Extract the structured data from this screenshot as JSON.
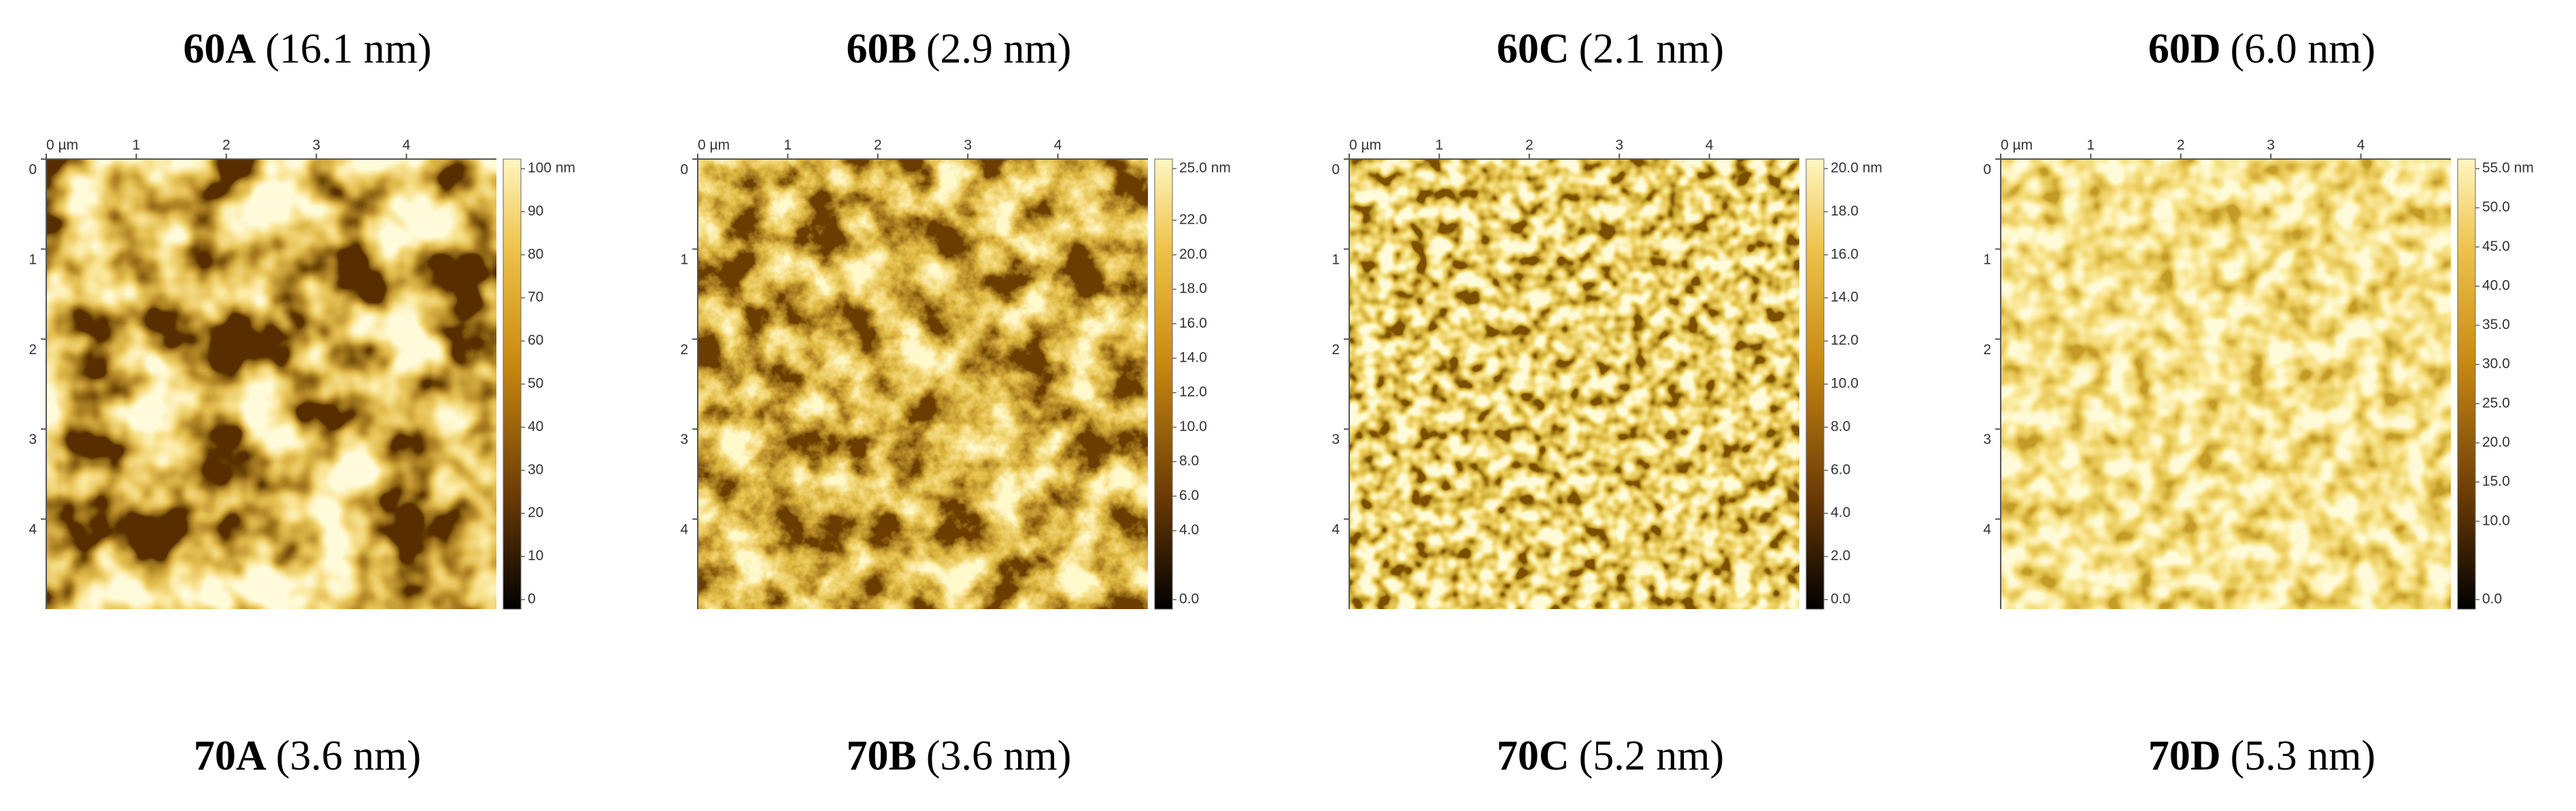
{
  "axes": {
    "xlim": [
      0,
      5
    ],
    "ylim": [
      0,
      5
    ],
    "xticks": [
      {
        "value": 0,
        "label": "0 µm"
      },
      1,
      2,
      3,
      4
    ],
    "yticks": [
      0,
      1,
      2,
      3,
      4
    ]
  },
  "panels": [
    {
      "label": "60A",
      "value": "(16.1 nm)",
      "colorbar": {
        "lim": [
          0,
          100
        ],
        "ticks": [
          {
            "value": 100,
            "label": "100 nm"
          },
          90,
          80,
          70,
          60,
          50,
          40,
          30,
          20,
          10,
          0
        ]
      }
    },
    {
      "label": "60B",
      "value": "(2.9 nm)",
      "colorbar": {
        "lim": [
          0,
          25
        ],
        "ticks": [
          {
            "value": 25,
            "label": "25.0 nm"
          },
          {
            "value": 22,
            "label": "22.0"
          },
          {
            "value": 20,
            "label": "20.0"
          },
          {
            "value": 18,
            "label": "18.0"
          },
          {
            "value": 16,
            "label": "16.0"
          },
          {
            "value": 14,
            "label": "14.0"
          },
          {
            "value": 12,
            "label": "12.0"
          },
          {
            "value": 10,
            "label": "10.0"
          },
          {
            "value": 8,
            "label": "8.0"
          },
          {
            "value": 6,
            "label": "6.0"
          },
          {
            "value": 4,
            "label": "4.0"
          },
          {
            "value": 0,
            "label": "0.0"
          }
        ]
      }
    },
    {
      "label": "60C",
      "value": "(2.1 nm)",
      "colorbar": {
        "lim": [
          0,
          20
        ],
        "ticks": [
          {
            "value": 20,
            "label": "20.0 nm"
          },
          {
            "value": 18,
            "label": "18.0"
          },
          {
            "value": 16,
            "label": "16.0"
          },
          {
            "value": 14,
            "label": "14.0"
          },
          {
            "value": 12,
            "label": "12.0"
          },
          {
            "value": 10,
            "label": "10.0"
          },
          {
            "value": 8,
            "label": "8.0"
          },
          {
            "value": 6,
            "label": "6.0"
          },
          {
            "value": 4,
            "label": "4.0"
          },
          {
            "value": 2,
            "label": "2.0"
          },
          {
            "value": 0,
            "label": "0.0"
          }
        ]
      }
    },
    {
      "label": "60D",
      "value": "(6.0 nm)",
      "colorbar": {
        "lim": [
          0,
          55
        ],
        "ticks": [
          {
            "value": 55,
            "label": "55.0 nm"
          },
          {
            "value": 50,
            "label": "50.0"
          },
          {
            "value": 45,
            "label": "45.0"
          },
          {
            "value": 40,
            "label": "40.0"
          },
          {
            "value": 35,
            "label": "35.0"
          },
          {
            "value": 30,
            "label": "30.0"
          },
          {
            "value": 25,
            "label": "25.0"
          },
          {
            "value": 20,
            "label": "20.0"
          },
          {
            "value": 15,
            "label": "15.0"
          },
          {
            "value": 10,
            "label": "10.0"
          },
          {
            "value": 0,
            "label": "0.0"
          }
        ]
      }
    }
  ],
  "bottom_labels": [
    {
      "label": "70A",
      "value": "(3.6 nm)"
    },
    {
      "label": "70B",
      "value": "(3.6 nm)"
    },
    {
      "label": "70C",
      "value": "(5.2 nm)"
    },
    {
      "label": "70D",
      "value": "(5.3 nm)"
    }
  ]
}
